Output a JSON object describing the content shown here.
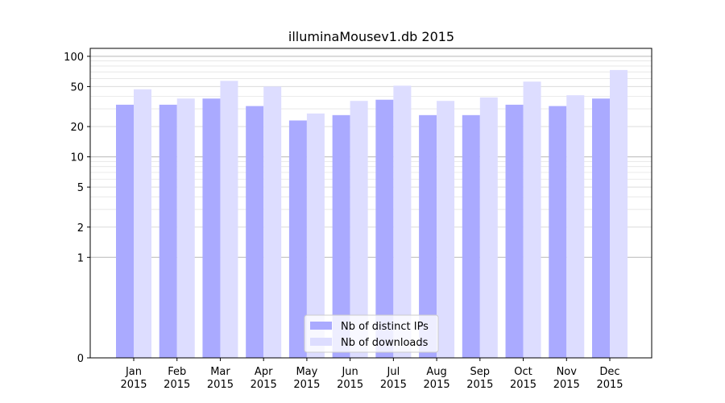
{
  "chart_data": {
    "type": "bar",
    "title": "illuminaMousev1.db 2015",
    "xlabel": "",
    "ylabel": "",
    "y_scale": "symlog",
    "ylim": [
      0,
      120
    ],
    "y_ticks": [
      0,
      1,
      2,
      5,
      10,
      20,
      50,
      100
    ],
    "y_tick_labels": [
      "0",
      "1",
      "2",
      "5",
      "10",
      "20",
      "50",
      "100"
    ],
    "grid": "horizontal",
    "legend_placement": "bottom-center",
    "categories": [
      [
        "Jan",
        "2015"
      ],
      [
        "Feb",
        "2015"
      ],
      [
        "Mar",
        "2015"
      ],
      [
        "Apr",
        "2015"
      ],
      [
        "May",
        "2015"
      ],
      [
        "Jun",
        "2015"
      ],
      [
        "Jul",
        "2015"
      ],
      [
        "Aug",
        "2015"
      ],
      [
        "Sep",
        "2015"
      ],
      [
        "Oct",
        "2015"
      ],
      [
        "Nov",
        "2015"
      ],
      [
        "Dec",
        "2015"
      ]
    ],
    "series": [
      {
        "name": "Nb of distinct IPs",
        "color": "#aaaaff",
        "values": [
          33,
          33,
          38,
          32,
          23,
          26,
          37,
          26,
          26,
          33,
          32,
          38
        ]
      },
      {
        "name": "Nb of downloads",
        "color": "#ddddff",
        "values": [
          47,
          38,
          57,
          50,
          27,
          36,
          51,
          36,
          39,
          56,
          41,
          73
        ]
      }
    ]
  }
}
